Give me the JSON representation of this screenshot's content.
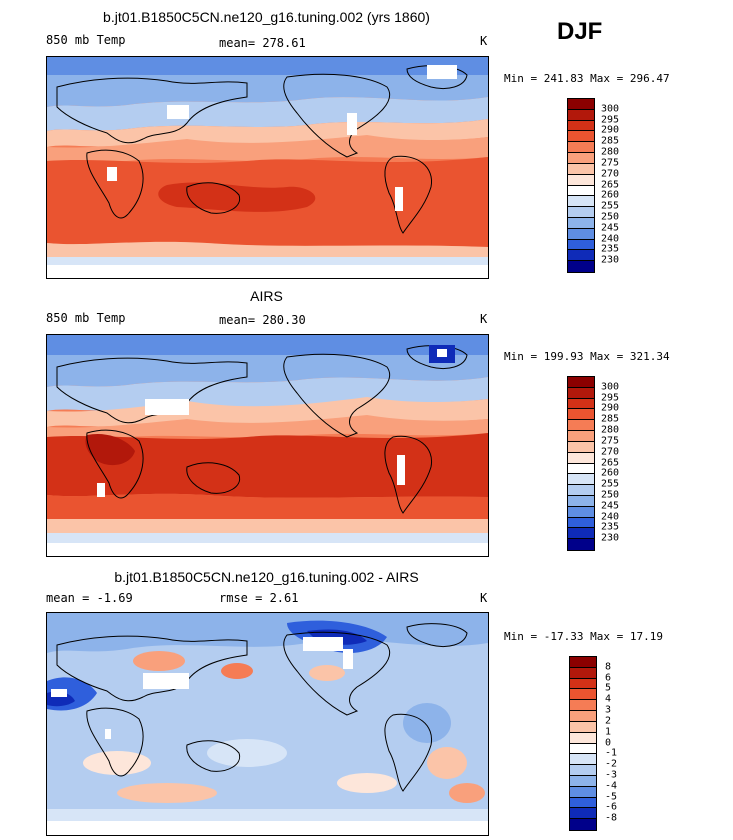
{
  "season": "DJF",
  "panels": [
    {
      "title": "b.jt01.B1850C5CN.ne120_g16.tuning.002 (yrs 1860)",
      "left_label": "850 mb Temp",
      "center_label": "mean= 278.61",
      "units": "K",
      "minmax": "Min = 241.83 Max = 296.47",
      "cbar_ticks": [
        "300",
        "295",
        "290",
        "285",
        "280",
        "275",
        "270",
        "265",
        "260",
        "255",
        "250",
        "245",
        "240",
        "235",
        "230"
      ],
      "cbar_colors": [
        "#8b0000",
        "#b2180b",
        "#d33117",
        "#ea5430",
        "#f57c55",
        "#f9a07c",
        "#fbc4a8",
        "#fde6da",
        "#ffffff",
        "#d7e5f7",
        "#b4cdf0",
        "#8db3ea",
        "#5f8ee3",
        "#2f5fdc",
        "#0f2bb8",
        "#00008a"
      ]
    },
    {
      "title": "AIRS",
      "left_label": "850 mb Temp",
      "center_label": "mean= 280.30",
      "units": "K",
      "minmax": "Min = 199.93 Max = 321.34",
      "cbar_ticks": [
        "300",
        "295",
        "290",
        "285",
        "280",
        "275",
        "270",
        "265",
        "260",
        "255",
        "250",
        "245",
        "240",
        "235",
        "230"
      ],
      "cbar_colors": [
        "#8b0000",
        "#b2180b",
        "#d33117",
        "#ea5430",
        "#f57c55",
        "#f9a07c",
        "#fbc4a8",
        "#fde6da",
        "#ffffff",
        "#d7e5f7",
        "#b4cdf0",
        "#8db3ea",
        "#5f8ee3",
        "#2f5fdc",
        "#0f2bb8",
        "#00008a"
      ]
    },
    {
      "title": "b.jt01.B1850C5CN.ne120_g16.tuning.002 - AIRS",
      "left_label": "mean =   -1.69",
      "center_label": "rmse =    2.61",
      "units": "K",
      "minmax": "Min = -17.33 Max =  17.19",
      "cbar_ticks": [
        "8",
        "6",
        "5",
        "4",
        "3",
        "2",
        "1",
        "0",
        "-1",
        "-2",
        "-3",
        "-4",
        "-5",
        "-6",
        "-8"
      ],
      "cbar_colors": [
        "#8b0000",
        "#b2180b",
        "#d33117",
        "#ea5430",
        "#f57c55",
        "#f9a07c",
        "#fbc4a8",
        "#fde6da",
        "#ffffff",
        "#d7e5f7",
        "#b4cdf0",
        "#8db3ea",
        "#5f8ee3",
        "#2f5fdc",
        "#0f2bb8",
        "#00008a"
      ]
    }
  ]
}
